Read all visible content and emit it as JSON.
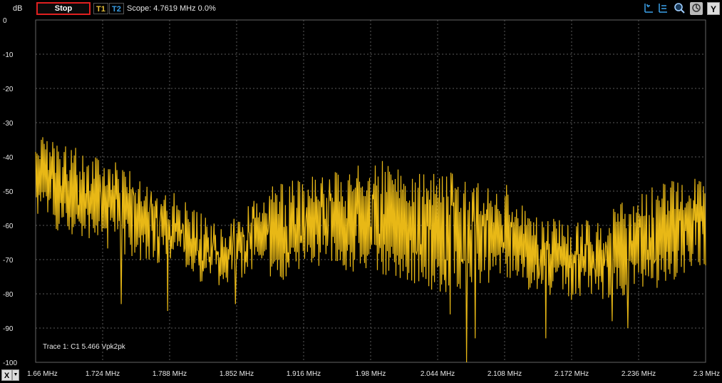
{
  "toolbar": {
    "y_unit": "dB",
    "stop_label": "Stop",
    "t1_label": "T1",
    "t2_label": "T2",
    "scope_text": "Scope: 4.7619 MHz 0.0%",
    "y_button": "Y",
    "x_button": "X"
  },
  "icons": [
    "zoom-y-icon",
    "zoom-x-icon",
    "magnify-icon",
    "autoscale-icon"
  ],
  "chart_data": {
    "type": "line",
    "title": "",
    "xlabel": "",
    "ylabel": "dB",
    "xlim": [
      1.66,
      2.3
    ],
    "ylim": [
      -100,
      0
    ],
    "x_ticks": [
      "1.66 MHz",
      "1.724 MHz",
      "1.788 MHz",
      "1.852 MHz",
      "1.916 MHz",
      "1.98 MHz",
      "2.044 MHz",
      "2.108 MHz",
      "2.172 MHz",
      "2.236 MHz",
      "2.3 MHz"
    ],
    "y_ticks": [
      "0",
      "-10",
      "-20",
      "-30",
      "-40",
      "-50",
      "-60",
      "-70",
      "-80",
      "-90",
      "-100"
    ],
    "grid": true,
    "annotation": "Trace 1: C1 5.466 Vpk2pk",
    "series": [
      {
        "color": "#e8b816",
        "envelope": {
          "x": [
            1.66,
            1.69,
            1.72,
            1.75,
            1.78,
            1.81,
            1.84,
            1.87,
            1.9,
            1.93,
            1.96,
            1.99,
            2.02,
            2.05,
            2.08,
            2.11,
            2.14,
            2.17,
            2.2,
            2.23,
            2.26,
            2.3
          ],
          "upper": [
            -32,
            -37,
            -38,
            -43,
            -47,
            -55,
            -60,
            -50,
            -47,
            -45,
            -43,
            -41,
            -45,
            -44,
            -46,
            -48,
            -57,
            -59,
            -58,
            -50,
            -47,
            -46
          ],
          "lower": [
            -58,
            -63,
            -66,
            -70,
            -72,
            -76,
            -78,
            -76,
            -76,
            -72,
            -74,
            -75,
            -77,
            -80,
            -78,
            -76,
            -80,
            -82,
            -82,
            -80,
            -78,
            -72
          ]
        },
        "minima": [
          {
            "x": 1.742,
            "y": -83
          },
          {
            "x": 1.786,
            "y": -85
          },
          {
            "x": 1.851,
            "y": -83
          },
          {
            "x": 2.056,
            "y": -86
          },
          {
            "x": 2.072,
            "y": -100
          },
          {
            "x": 2.08,
            "y": -93
          },
          {
            "x": 2.147,
            "y": -93
          },
          {
            "x": 2.211,
            "y": -88
          },
          {
            "x": 2.226,
            "y": -90
          }
        ]
      }
    ]
  }
}
